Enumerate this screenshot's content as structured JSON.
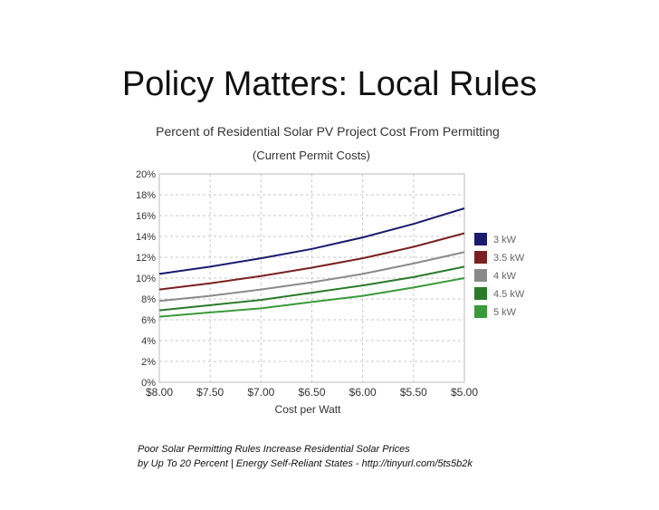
{
  "slide": {
    "title": "Policy Matters: Local Rules",
    "footer_line1": "Poor Solar Permitting Rules Increase Residential Solar Prices",
    "footer_line2": "by Up To 20 Percent | Energy Self-Reliant States - http://tinyurl.com/5ts5b2k"
  },
  "chart_data": {
    "type": "line",
    "title": "Percent of Residential Solar PV Project Cost From Permitting",
    "subtitle": "(Current Permit Costs)",
    "xlabel": "Cost per Watt",
    "ylabel": "",
    "x": [
      8.0,
      7.5,
      7.0,
      6.5,
      6.0,
      5.5,
      5.0
    ],
    "x_tick_labels": [
      "$8.00",
      "$7.50",
      "$7.00",
      "$6.50",
      "$6.00",
      "$5.50",
      "$5.00"
    ],
    "x_reversed": true,
    "ylim": [
      0,
      20
    ],
    "y_ticks": [
      0,
      2,
      4,
      6,
      8,
      10,
      12,
      14,
      16,
      18,
      20
    ],
    "y_tick_labels": [
      "0%",
      "2%",
      "4%",
      "6%",
      "8%",
      "10%",
      "12%",
      "14%",
      "16%",
      "18%",
      "20%"
    ],
    "grid": true,
    "legend_position": "right",
    "series": [
      {
        "name": "3 kW",
        "color": "#1a1a6e",
        "values": [
          10.4,
          11.1,
          11.9,
          12.8,
          13.9,
          15.2,
          16.7
        ]
      },
      {
        "name": "3.5 kW",
        "color": "#7a2020",
        "values": [
          8.9,
          9.5,
          10.2,
          11.0,
          11.9,
          13.0,
          14.3
        ]
      },
      {
        "name": "4 kW",
        "color": "#8a8a8a",
        "values": [
          7.8,
          8.3,
          8.9,
          9.6,
          10.4,
          11.4,
          12.5
        ]
      },
      {
        "name": "4.5 kW",
        "color": "#2a7a2a",
        "values": [
          6.9,
          7.4,
          7.9,
          8.6,
          9.3,
          10.1,
          11.1
        ]
      },
      {
        "name": "5 kW",
        "color": "#3a9a3a",
        "values": [
          6.3,
          6.7,
          7.1,
          7.7,
          8.3,
          9.1,
          10.0
        ]
      }
    ]
  }
}
